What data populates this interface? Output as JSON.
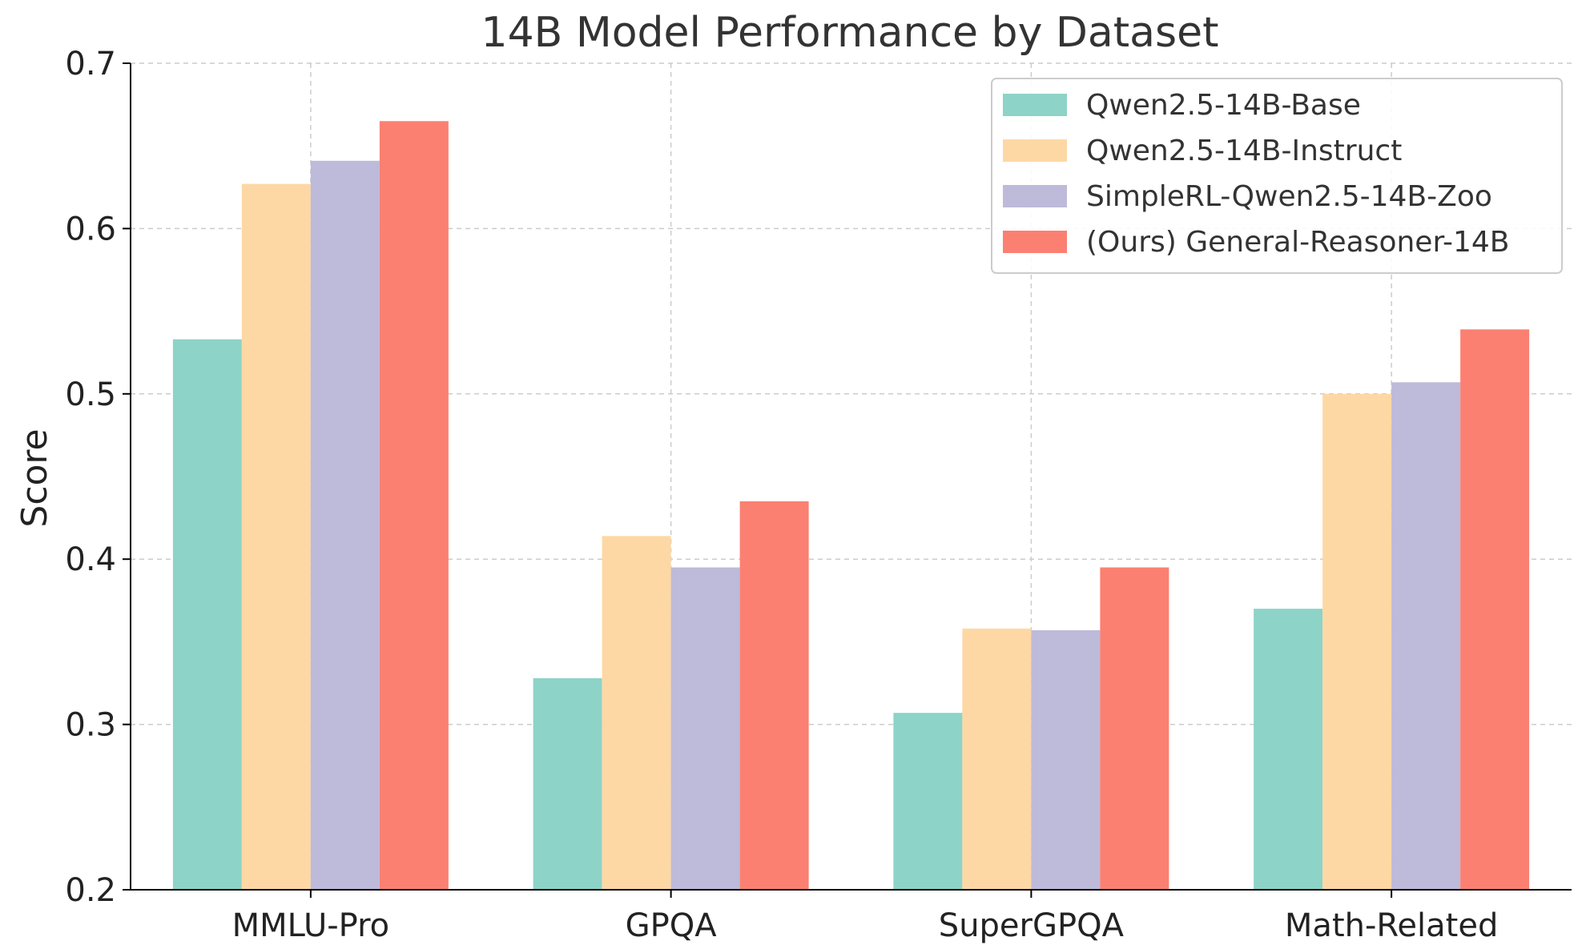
{
  "chart_data": {
    "type": "bar",
    "title": "14B Model Performance by Dataset",
    "xlabel": "",
    "ylabel": "Score",
    "ylim": [
      0.2,
      0.7
    ],
    "yticks": [
      "0.2",
      "0.3",
      "0.4",
      "0.5",
      "0.6",
      "0.7"
    ],
    "grid": true,
    "legend_position": "top-right",
    "categories": [
      "MMLU-Pro",
      "GPQA",
      "SuperGPQA",
      "Math-Related"
    ],
    "series": [
      {
        "name": "Qwen2.5-14B-Base",
        "color": "#8dd3c7",
        "values": [
          0.533,
          0.328,
          0.307,
          0.37
        ]
      },
      {
        "name": "Qwen2.5-14B-Instruct",
        "color": "#fdd8a5",
        "values": [
          0.627,
          0.414,
          0.358,
          0.5
        ]
      },
      {
        "name": "SimpleRL-Qwen2.5-14B-Zoo",
        "color": "#bebada",
        "values": [
          0.641,
          0.395,
          0.357,
          0.507
        ]
      },
      {
        "name": "(Ours) General-Reasoner-14B",
        "color": "#fb8072",
        "values": [
          0.665,
          0.435,
          0.395,
          0.539
        ]
      }
    ]
  }
}
